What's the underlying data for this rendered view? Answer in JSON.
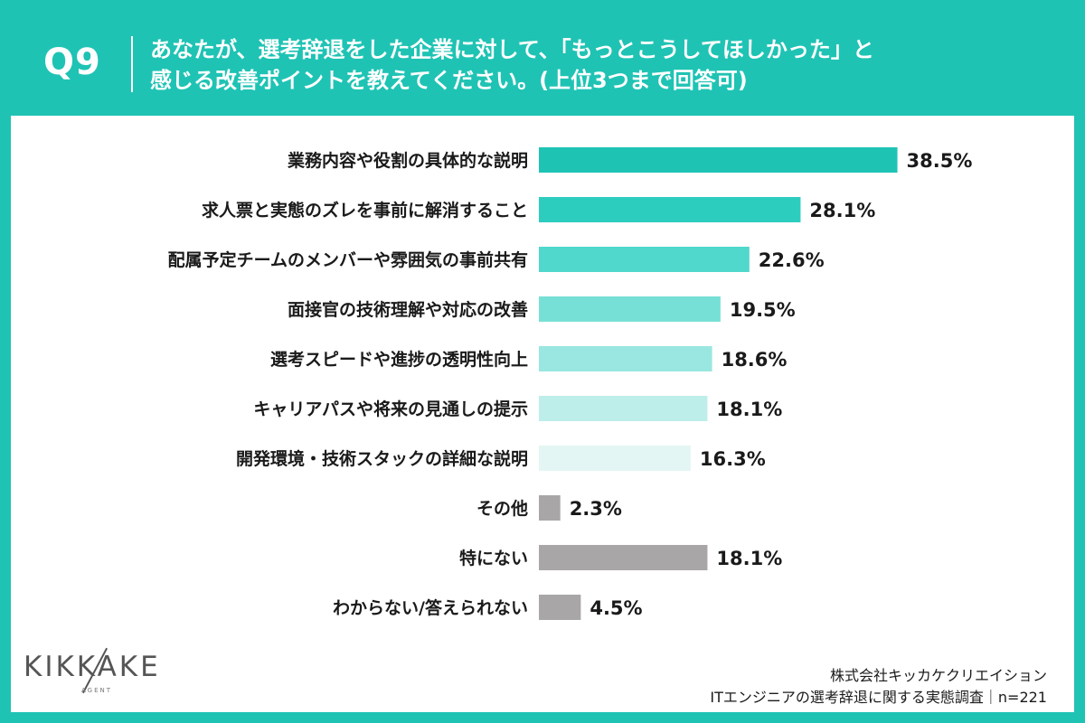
{
  "header": {
    "question_number": "Q9",
    "question_line1": "あなたが、選考辞退をした企業に対して、「もっとこうしてほしかった」と",
    "question_line2": "感じる改善ポイントを教えてください。(上位3つまで回答可)"
  },
  "logo": {
    "text": "KIKKAKE",
    "sub": "AGENT"
  },
  "footer": {
    "company": "株式会社キッカケクリエイション",
    "survey": "ITエンジニアの選考辞退に関する実態調査｜n=221"
  },
  "colors": {
    "brand": "#1fc3b4",
    "gray_bar": "#a9a6a8"
  },
  "chart_data": {
    "type": "bar",
    "orientation": "horizontal",
    "categories": [
      "業務内容や役割の具体的な説明",
      "求人票と実態のズレを事前に解消すること",
      "配属予定チームのメンバーや雰囲気の事前共有",
      "面接官の技術理解や対応の改善",
      "選考スピードや進捗の透明性向上",
      "キャリアパスや将来の見通しの提示",
      "開発環境・技術スタックの詳細な説明",
      "その他",
      "特にない",
      "わからない/答えられない"
    ],
    "values": [
      38.5,
      28.1,
      22.6,
      19.5,
      18.6,
      18.1,
      16.3,
      2.3,
      18.1,
      4.5
    ],
    "value_labels": [
      "38.5%",
      "28.1%",
      "22.6%",
      "19.5%",
      "18.6%",
      "18.1%",
      "16.3%",
      "2.3%",
      "18.1%",
      "4.5%"
    ],
    "bar_colors": [
      "#1fc3b4",
      "#2ccdbe",
      "#4fd8cb",
      "#77e0d6",
      "#99e7e0",
      "#bdeee9",
      "#e4f6f4",
      "#a9a6a8",
      "#a9a6a8",
      "#a9a6a8"
    ],
    "unit": "%",
    "xlim": [
      0,
      40
    ],
    "grid": false,
    "legend": "none"
  }
}
